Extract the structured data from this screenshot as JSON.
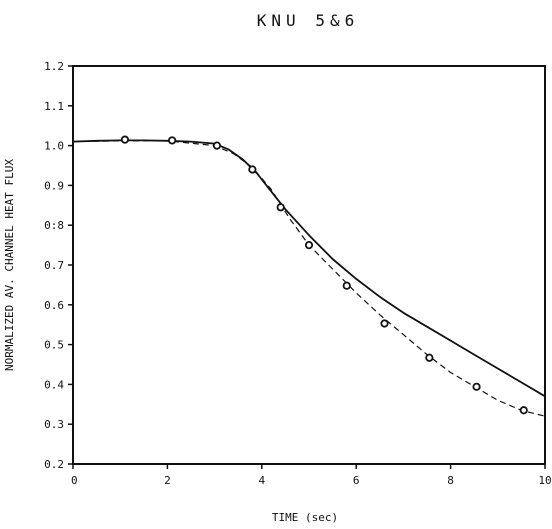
{
  "chart_data": {
    "type": "line",
    "title": "KNU 5&6",
    "xlabel": "TIME (sec)",
    "ylabel": "NORMALIZED AV. CHANNEL HEAT FLUX",
    "xlim": [
      0,
      10
    ],
    "ylim": [
      0.2,
      1.2
    ],
    "x_ticks": [
      "0",
      "2",
      "4",
      "6",
      "8",
      "10"
    ],
    "y_ticks": [
      "0.2",
      "0.3",
      "0.4",
      "0.5",
      "0.6",
      "0.7",
      "0:8",
      "0.9",
      "1.0",
      "1.1",
      "1.2"
    ],
    "grid": false,
    "series": [
      {
        "style": "solid",
        "color": "#111111",
        "x": [
          0,
          0.5,
          1,
          1.5,
          2,
          2.5,
          3,
          3.3,
          3.6,
          3.9,
          4.2,
          4.5,
          5,
          5.5,
          6,
          6.5,
          7,
          7.5,
          8,
          8.5,
          9,
          9.5,
          10
        ],
        "y": [
          1.01,
          1.012,
          1.013,
          1.013,
          1.012,
          1.01,
          1.005,
          0.99,
          0.965,
          0.93,
          0.885,
          0.84,
          0.775,
          0.715,
          0.665,
          0.62,
          0.58,
          0.545,
          0.51,
          0.475,
          0.44,
          0.405,
          0.37
        ]
      },
      {
        "style": "dashed",
        "color": "#111111",
        "x": [
          0,
          1,
          2,
          3,
          3.4,
          3.8,
          4.2,
          4.6,
          5,
          5.5,
          6,
          6.5,
          7,
          7.5,
          8,
          8.5,
          9,
          9.5,
          10
        ],
        "y": [
          1.01,
          1.012,
          1.012,
          1.0,
          0.98,
          0.945,
          0.89,
          0.815,
          0.75,
          0.69,
          0.63,
          0.575,
          0.525,
          0.475,
          0.43,
          0.395,
          0.36,
          0.335,
          0.32
        ]
      },
      {
        "style": "markers",
        "color": "#111111",
        "x": [
          1.1,
          2.1,
          3.05,
          3.8,
          4.4,
          5.0,
          5.8,
          6.6,
          7.55,
          8.55,
          9.55
        ],
        "y": [
          1.015,
          1.013,
          1.0,
          0.94,
          0.845,
          0.75,
          0.648,
          0.553,
          0.467,
          0.394,
          0.335
        ]
      }
    ]
  }
}
